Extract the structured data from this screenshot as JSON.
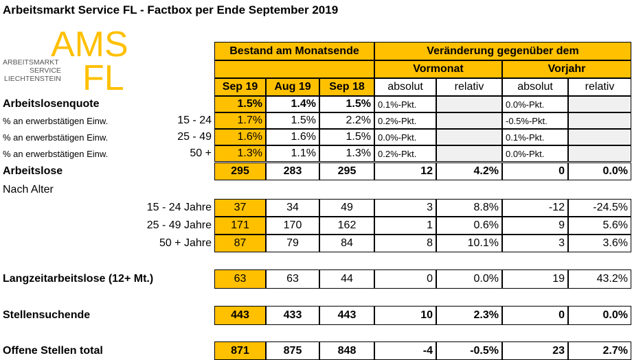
{
  "title": "Arbeitsmarkt Service FL - Factbox per Ende September 2019",
  "logo": {
    "ams": "AMS",
    "fl": "FL",
    "line1": "ARBEITSMARKT",
    "line2": "SERVICE",
    "line3": "LIECHTENSTEIN"
  },
  "header": {
    "bestand": "Bestand am Monatsende",
    "veraenderung": "Veränderung gegenüber dem",
    "vormonat": "Vormonat",
    "vorjahr": "Vorjahr",
    "sep19": "Sep 19",
    "aug19": "Aug 19",
    "sep18": "Sep 18",
    "absolut": "absolut",
    "relativ": "relativ"
  },
  "rows": {
    "quote": {
      "label": "Arbeitslosenquote",
      "sep19": "1.5%",
      "aug19": "1.4%",
      "sep18": "1.5%",
      "vm_abs": "0.1%-Pkt.",
      "vj_abs": "0.0%-Pkt."
    },
    "q1524": {
      "label": "% an erwerbstätigen Einw.",
      "range": "15 - 24",
      "sep19": "1.7%",
      "aug19": "1.5%",
      "sep18": "2.2%",
      "vm_abs": "0.2%-Pkt.",
      "vj_abs": "-0.5%-Pkt."
    },
    "q2549": {
      "label": "% an erwerbstätigen Einw.",
      "range": "25 - 49",
      "sep19": "1.6%",
      "aug19": "1.6%",
      "sep18": "1.5%",
      "vm_abs": "0.0%-Pkt.",
      "vj_abs": "0.1%-Pkt."
    },
    "q50": {
      "label": "% an erwerbstätigen Einw.",
      "range": "50 +",
      "sep19": "1.3%",
      "aug19": "1.1%",
      "sep18": "1.3%",
      "vm_abs": "0.2%-Pkt.",
      "vj_abs": "0.0%-Pkt."
    },
    "arbeitslose": {
      "label": "Arbeitslose",
      "sep19": "295",
      "aug19": "283",
      "sep18": "295",
      "vm_abs": "12",
      "vm_rel": "4.2%",
      "vj_abs": "0",
      "vj_rel": "0.0%"
    },
    "nach_alter": {
      "label": "Nach Alter"
    },
    "a1524": {
      "label": "15 - 24 Jahre",
      "sep19": "37",
      "aug19": "34",
      "sep18": "49",
      "vm_abs": "3",
      "vm_rel": "8.8%",
      "vj_abs": "-12",
      "vj_rel": "-24.5%"
    },
    "a2549": {
      "label": "25 - 49 Jahre",
      "sep19": "171",
      "aug19": "170",
      "sep18": "162",
      "vm_abs": "1",
      "vm_rel": "0.6%",
      "vj_abs": "9",
      "vj_rel": "5.6%"
    },
    "a50": {
      "label": "50 + Jahre",
      "sep19": "87",
      "aug19": "79",
      "sep18": "84",
      "vm_abs": "8",
      "vm_rel": "10.1%",
      "vj_abs": "3",
      "vj_rel": "3.6%"
    },
    "langzeit": {
      "label": "Langzeitarbeitslose (12+ Mt.)",
      "sep19": "63",
      "aug19": "63",
      "sep18": "44",
      "vm_abs": "0",
      "vm_rel": "0.0%",
      "vj_abs": "19",
      "vj_rel": "43.2%"
    },
    "stellensuchende": {
      "label": "Stellensuchende",
      "sep19": "443",
      "aug19": "433",
      "sep18": "443",
      "vm_abs": "10",
      "vm_rel": "2.3%",
      "vj_abs": "0",
      "vj_rel": "0.0%"
    },
    "offene": {
      "label": "Offene Stellen total",
      "sep19": "871",
      "aug19": "875",
      "sep18": "848",
      "vm_abs": "-4",
      "vm_rel": "-0.5%",
      "vj_abs": "23",
      "vj_rel": "2.7%"
    }
  },
  "colors": {
    "accent": "#ffc000",
    "muted": "#f0f0f0",
    "text": "#000000"
  }
}
